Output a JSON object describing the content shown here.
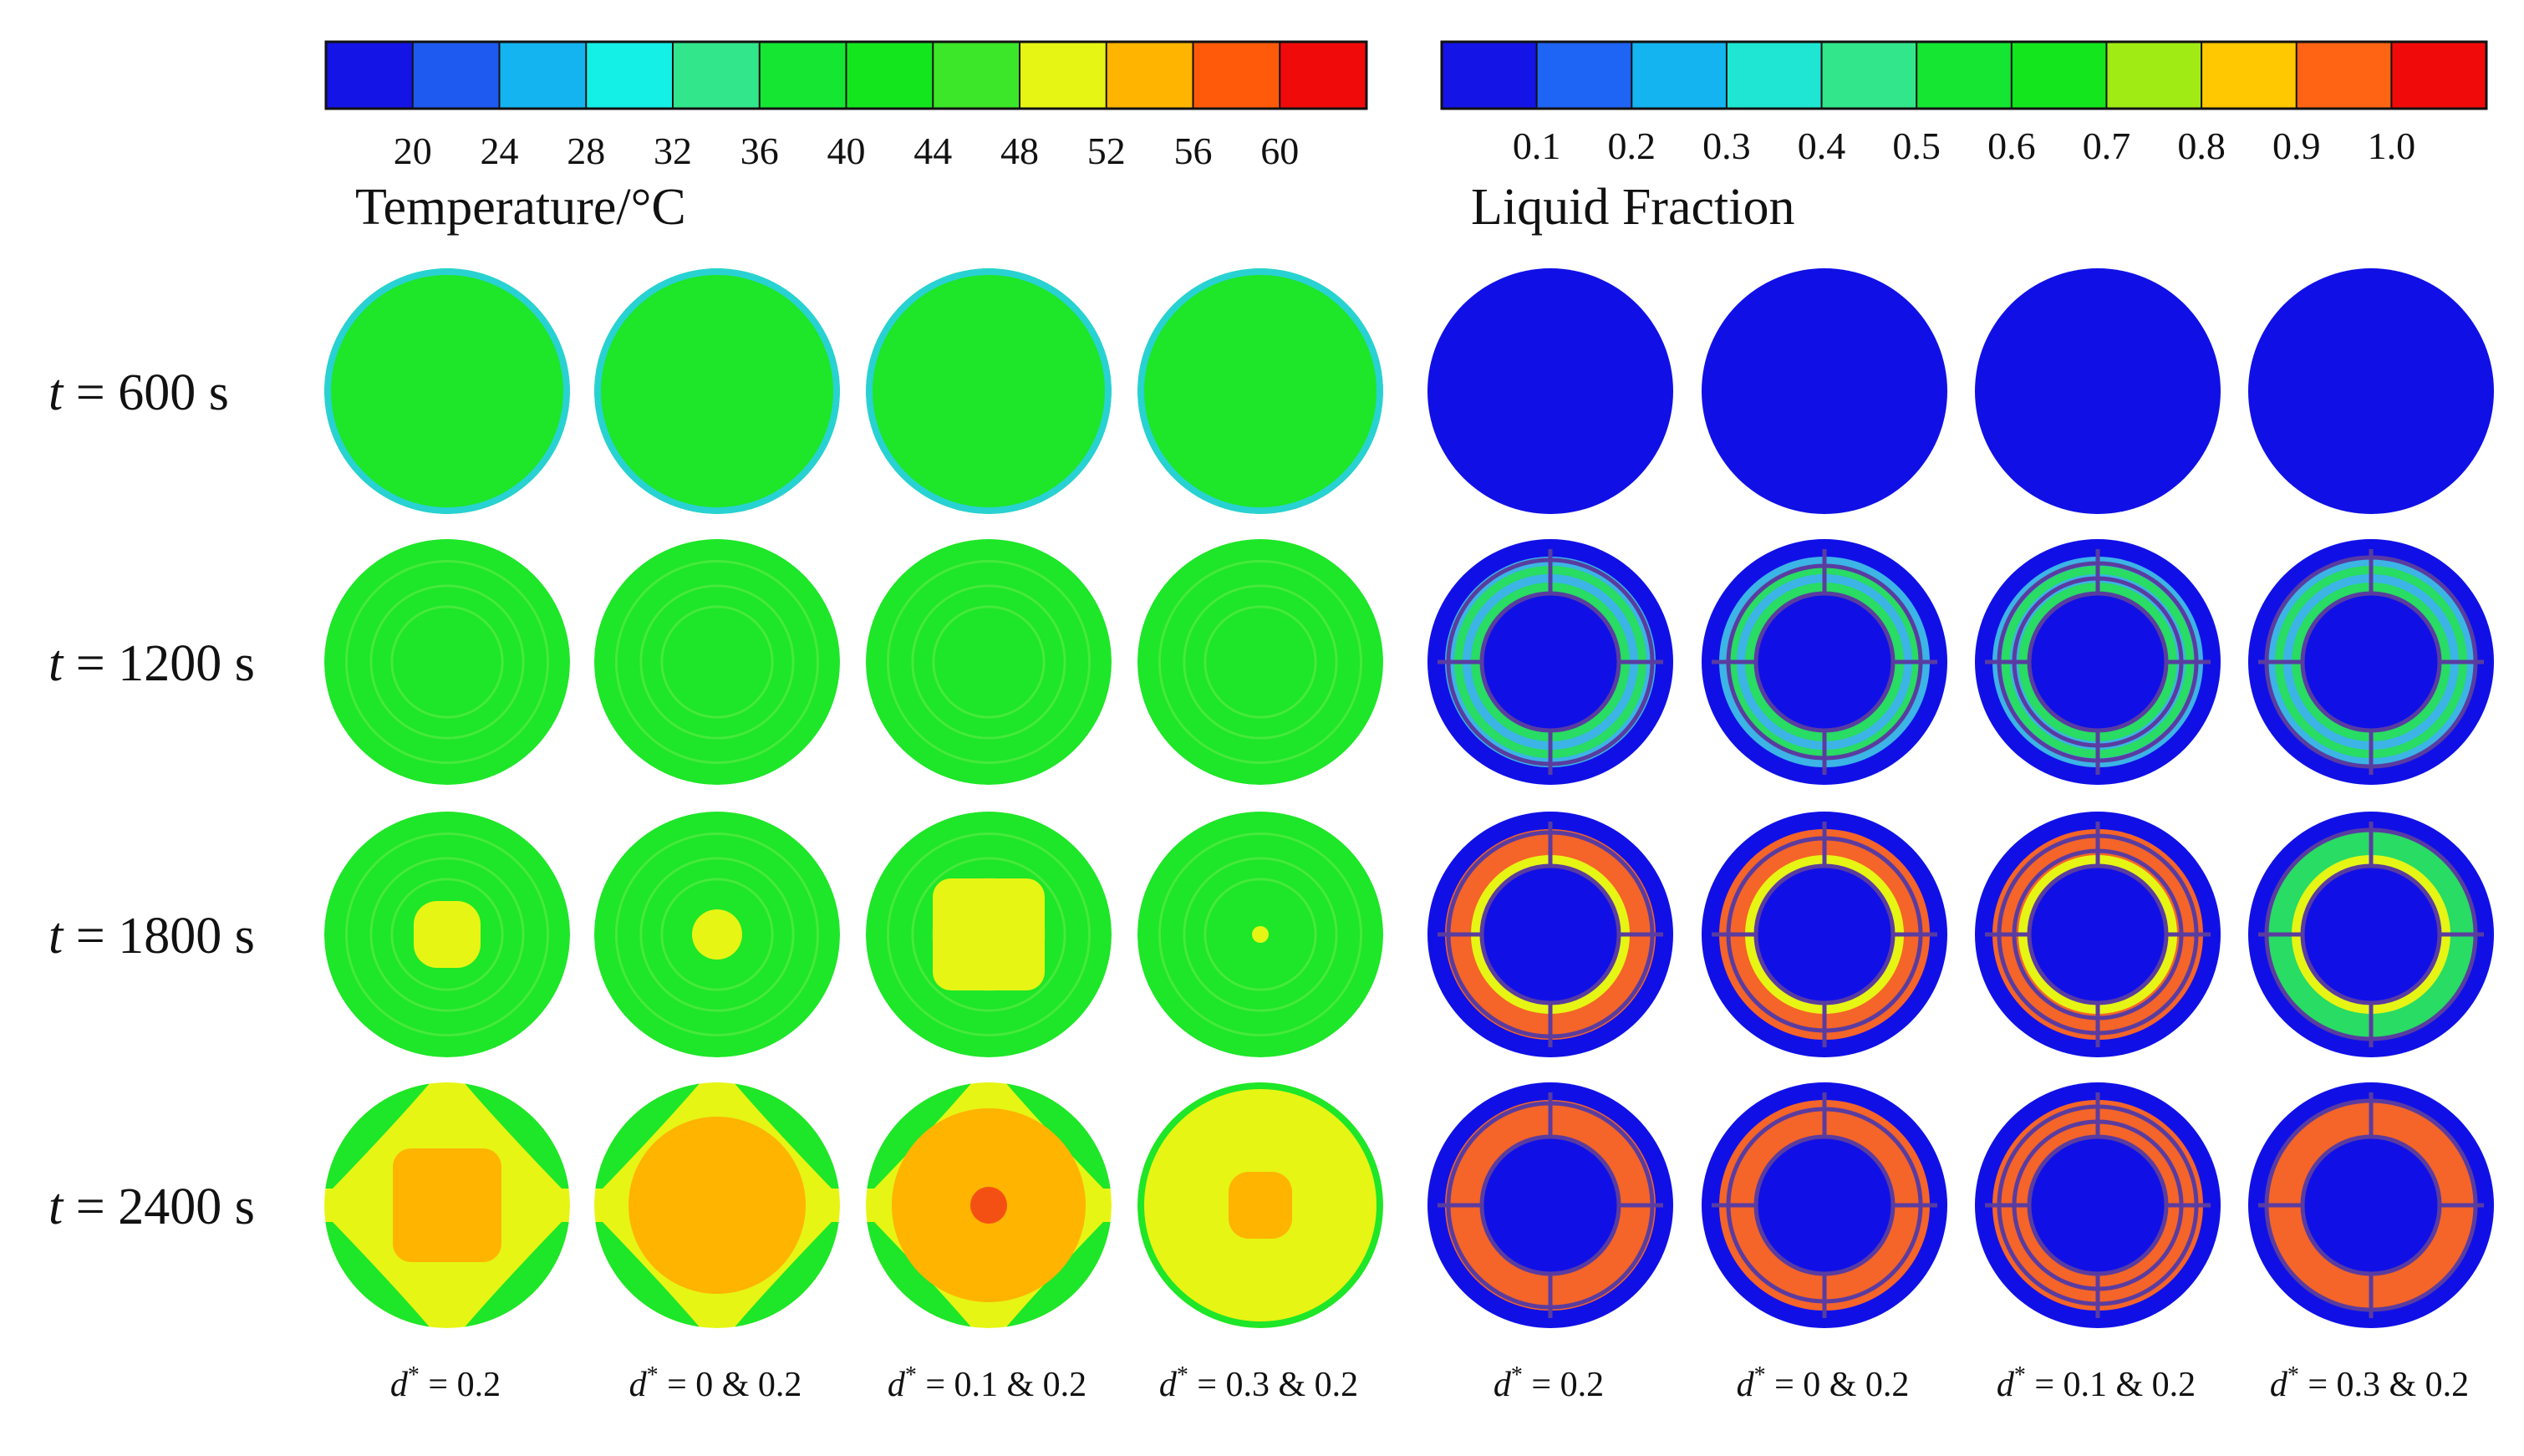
{
  "temperature_legend": {
    "title": "Temperature/°C",
    "ticks": [
      "20",
      "24",
      "28",
      "32",
      "36",
      "40",
      "44",
      "48",
      "52",
      "56",
      "60"
    ],
    "colors": [
      "#1414e6",
      "#1e5af0",
      "#14b4f0",
      "#14f0e6",
      "#32e68c",
      "#14e632",
      "#14e61e",
      "#3ce628",
      "#e6f514",
      "#ffb400",
      "#ff5a0a",
      "#f00a0a"
    ]
  },
  "liquid_fraction_legend": {
    "title": "Liquid Fraction",
    "ticks": [
      "0.1",
      "0.2",
      "0.3",
      "0.4",
      "0.5",
      "0.6",
      "0.7",
      "0.8",
      "0.9",
      "1.0"
    ],
    "colors": [
      "#1414e6",
      "#1e64f5",
      "#14b4f0",
      "#1ee6d2",
      "#32e68c",
      "#14e632",
      "#14e61e",
      "#a0eb14",
      "#ffc800",
      "#ff6414",
      "#f00a0a"
    ]
  },
  "rows": [
    {
      "label": "600 s"
    },
    {
      "label": "1200 s"
    },
    {
      "label": "1800 s"
    },
    {
      "label": "2400 s"
    }
  ],
  "time_symbol": "t",
  "time_eq": " = ",
  "columns": [
    {
      "sym": "d",
      "sup": "*",
      "rest": " = 0.2"
    },
    {
      "sym": "d",
      "sup": "*",
      "rest": " = 0 & 0.2"
    },
    {
      "sym": "d",
      "sup": "*",
      "rest": " = 0.1 & 0.2"
    },
    {
      "sym": "d",
      "sup": "*",
      "rest": " = 0.3 & 0.2"
    },
    {
      "sym": "d",
      "sup": "*",
      "rest": " = 0.2"
    },
    {
      "sym": "d",
      "sup": "*",
      "rest": " = 0 & 0.2"
    },
    {
      "sym": "d",
      "sup": "*",
      "rest": " = 0.1 & 0.2"
    },
    {
      "sym": "d",
      "sup": "*",
      "rest": " = 0.3 & 0.2"
    }
  ],
  "palette": {
    "green": "#1ee628",
    "green_light": "#46ea3c",
    "cyan_edge": "#28d2d2",
    "yellow": "#e6f514",
    "orange": "#ffb400",
    "red_orange": "#f55014",
    "blue": "#1010e6",
    "fin": "#5a3ca0",
    "band_cyan": "#3cb4e6",
    "band_green": "#28dc64",
    "band_orange": "#f56428"
  }
}
